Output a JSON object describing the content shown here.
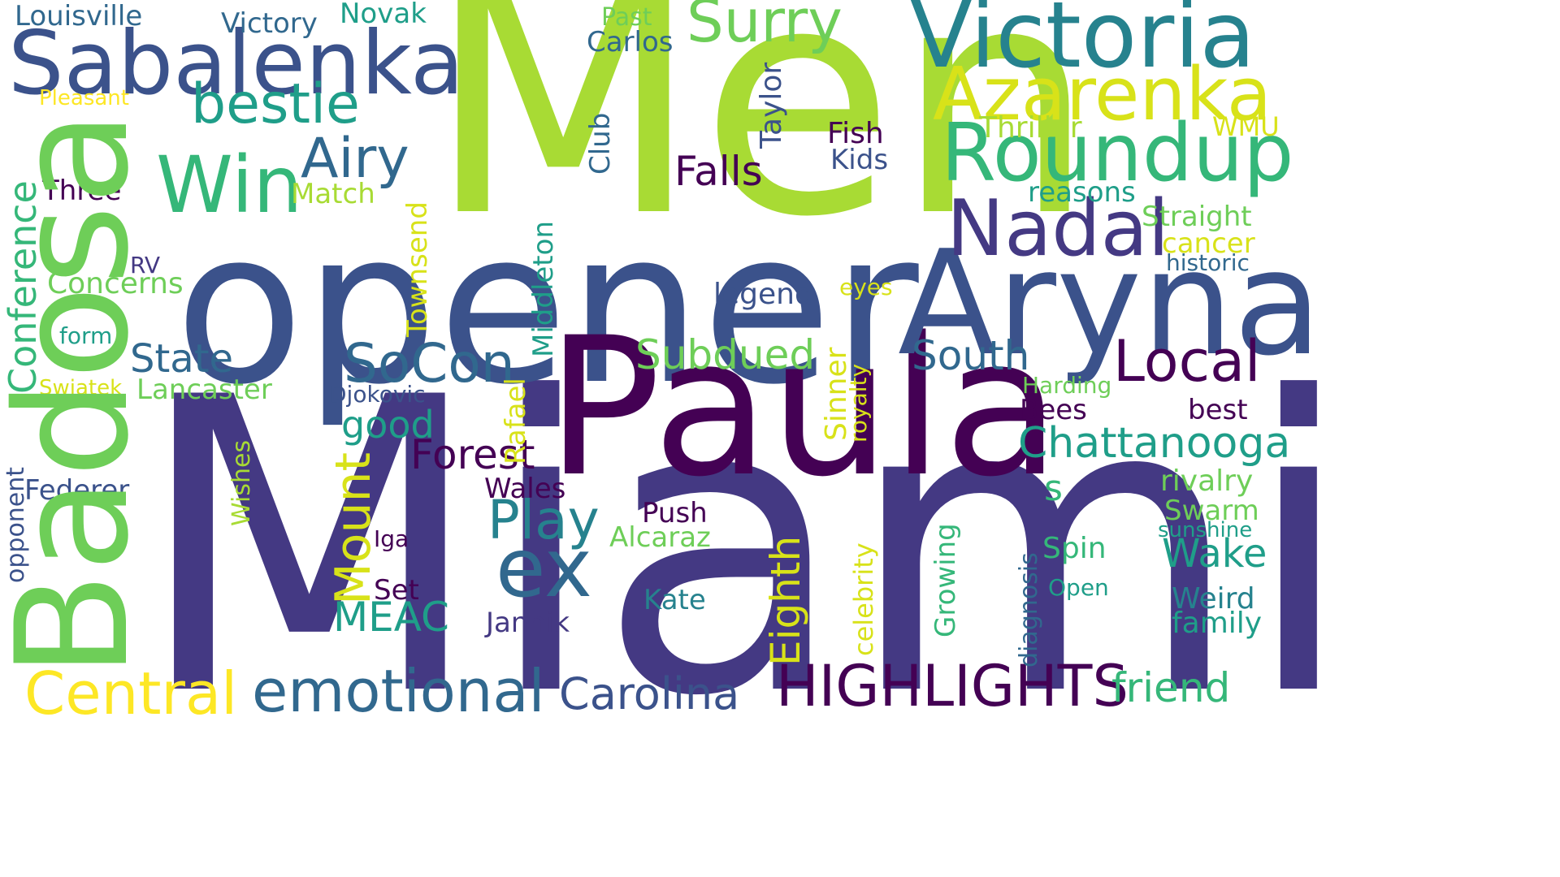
{
  "palette": {
    "c1": "#440154",
    "c2": "#443983",
    "c3": "#3b528b",
    "c4": "#31688e",
    "c5": "#26828e",
    "c6": "#1f9e89",
    "c7": "#35b779",
    "c8": "#6ece58",
    "c9": "#a8db34",
    "c10": "#d8e219",
    "c11": "#fde725"
  },
  "words": {
    "miami": "Miami",
    "men": "Men",
    "opener": "opener",
    "paula": "Paula",
    "badosa": "Badosa",
    "aryna": "Aryna",
    "victoria": "Victoria",
    "sabalenka": "Sabalenka",
    "azarenka": "Azarenka",
    "roundup": "Roundup",
    "nadal": "Nadal",
    "win": "Win",
    "surry": "Surry",
    "bestie": "bestie",
    "airy": "Airy",
    "local": "Local",
    "ex": "ex",
    "highlights": "HIGHLIGHTS",
    "emotional": "emotional",
    "central": "Central",
    "carolina": "Carolina",
    "chattanooga": "Chattanooga",
    "play": "Play",
    "socon": "SoCon",
    "south": "South",
    "forest": "Forest",
    "subdued": "Subdued",
    "mount": "Mount",
    "eighth": "Eighth",
    "friend": "friend",
    "conference": "Conference",
    "state": "State",
    "falls": "Falls",
    "meac": "MEAC",
    "good": "good",
    "wake": "Wake",
    "louisville": "Louisville",
    "victory": "Victory",
    "novak": "Novak",
    "past": "Past",
    "carlos": "Carlos",
    "pleasant": "Pleasant",
    "taylor": "Taylor",
    "club": "Club",
    "fish": "Fish",
    "kids": "Kids",
    "thriller": "Thriller",
    "wmu": "WMU",
    "three": "Three",
    "match": "Match",
    "reasons": "reasons",
    "straight": "Straight",
    "cancer": "cancer",
    "historic": "historic",
    "rv": "RV",
    "concerns": "Concerns",
    "townsend": "Townsend",
    "middleton": "Middleton",
    "legend": "legend",
    "eyes": "eyes",
    "form": "form",
    "swiatek": "Swiatek",
    "lancaster": "Lancaster",
    "djokovic": "Djokovic",
    "rafael": "Rafael",
    "sinner": "Sinner",
    "royalty": "royalty",
    "harding": "Harding",
    "bees": "Bees",
    "best": "best",
    "s": "s",
    "rivalry": "rivalry",
    "wales": "Wales",
    "federer": "Federer",
    "opponent": "opponent",
    "wishes": "Wishes",
    "push": "Push",
    "swarm": "Swarm",
    "sunshine": "sunshine",
    "iga": "Iga",
    "alcaraz": "Alcaraz",
    "celebrity": "celebrity",
    "growing": "Growing",
    "diagnosis": "diagnosis",
    "spin": "Spin",
    "open": "Open",
    "set": "Set",
    "kate": "Kate",
    "jannik": "Jannik",
    "weird": "Weird",
    "family": "family"
  }
}
